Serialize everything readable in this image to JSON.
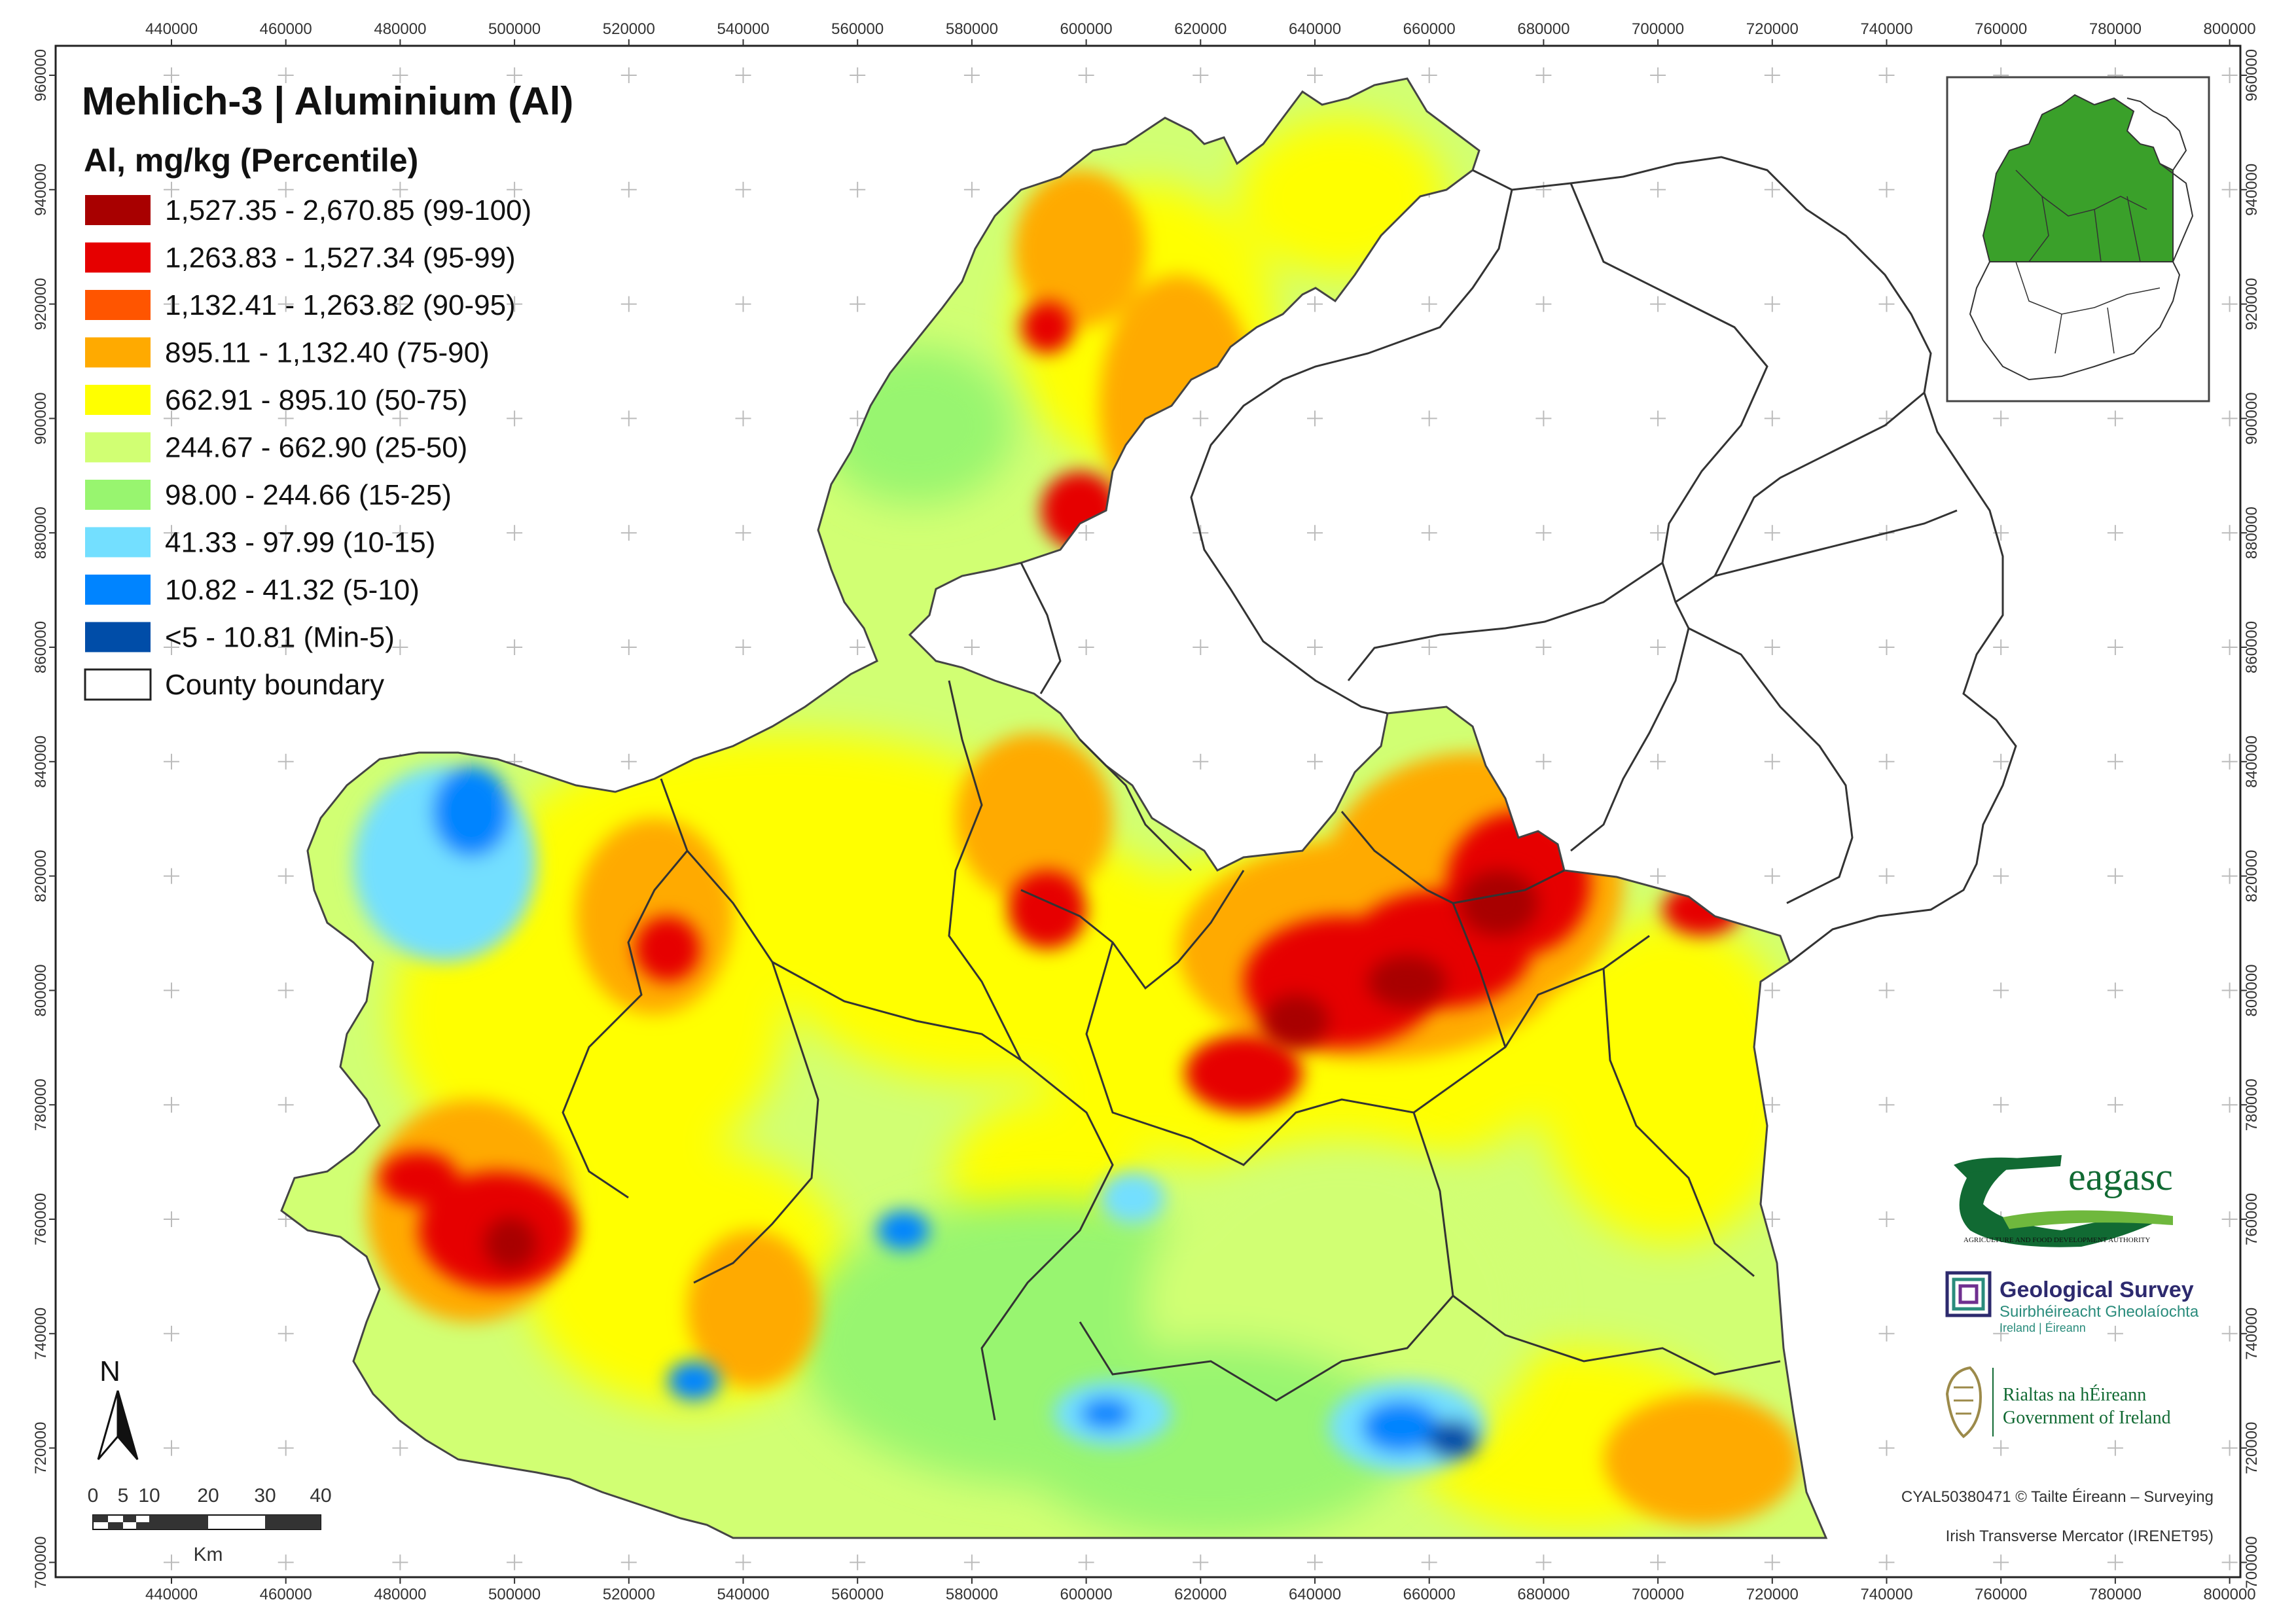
{
  "map": {
    "title": "Mehlich-3 | Aluminium (Al)",
    "legend_title": "Al, mg/kg (Percentile)",
    "legend": [
      {
        "label": "1,527.35 - 2,670.85 (99-100)",
        "color": "#a80000"
      },
      {
        "label": "1,263.83 - 1,527.34 (95-99)",
        "color": "#e60000"
      },
      {
        "label": "1,132.41 - 1,263.82 (90-95)",
        "color": "#ff5500"
      },
      {
        "label": "895.11 - 1,132.40 (75-90)",
        "color": "#ffaa00"
      },
      {
        "label": "662.91 - 895.10 (50-75)",
        "color": "#ffff00"
      },
      {
        "label": "244.67 - 662.90 (25-50)",
        "color": "#d1ff73"
      },
      {
        "label": "98.00 - 244.66 (15-25)",
        "color": "#98f56f"
      },
      {
        "label": "41.33 - 97.99 (10-15)",
        "color": "#73dfff"
      },
      {
        "label": "10.82 - 41.32 (5-10)",
        "color": "#0084ff"
      },
      {
        "label": "<5 - 10.81 (Min-5)",
        "color": "#004da8"
      },
      {
        "label": "County boundary",
        "color": "#ffffff"
      }
    ],
    "x_ticks": [
      "440000",
      "460000",
      "480000",
      "500000",
      "520000",
      "540000",
      "560000",
      "580000",
      "600000",
      "620000",
      "640000",
      "660000",
      "680000",
      "700000",
      "720000",
      "740000",
      "760000",
      "780000",
      "800000"
    ],
    "y_ticks": [
      "960000",
      "940000",
      "920000",
      "900000",
      "880000",
      "860000",
      "840000",
      "820000",
      "800000",
      "780000",
      "760000",
      "740000",
      "720000",
      "700000"
    ],
    "north_label": "N",
    "scale_labels": [
      "0",
      "5",
      "10",
      "20",
      "30",
      "40"
    ],
    "scale_unit": "Km",
    "copyright": "CYAL50380471 © Tailte Éireann – Surveying",
    "projection": "Irish Transverse Mercator (IRENET95)",
    "inset_highlight_color": "#3aa02a"
  },
  "logos": {
    "teagasc_name": "eagasc",
    "teagasc_tagline": "AGRICULTURE AND FOOD DEVELOPMENT AUTHORITY",
    "gsi_name": "Geological Survey",
    "gsi_irish": "Suirbhéireacht Gheolaíochta",
    "gsi_sub": "Ireland | Éireann",
    "gov_irish": "Rialtas na hÉireann",
    "gov_english": "Government of Ireland"
  }
}
